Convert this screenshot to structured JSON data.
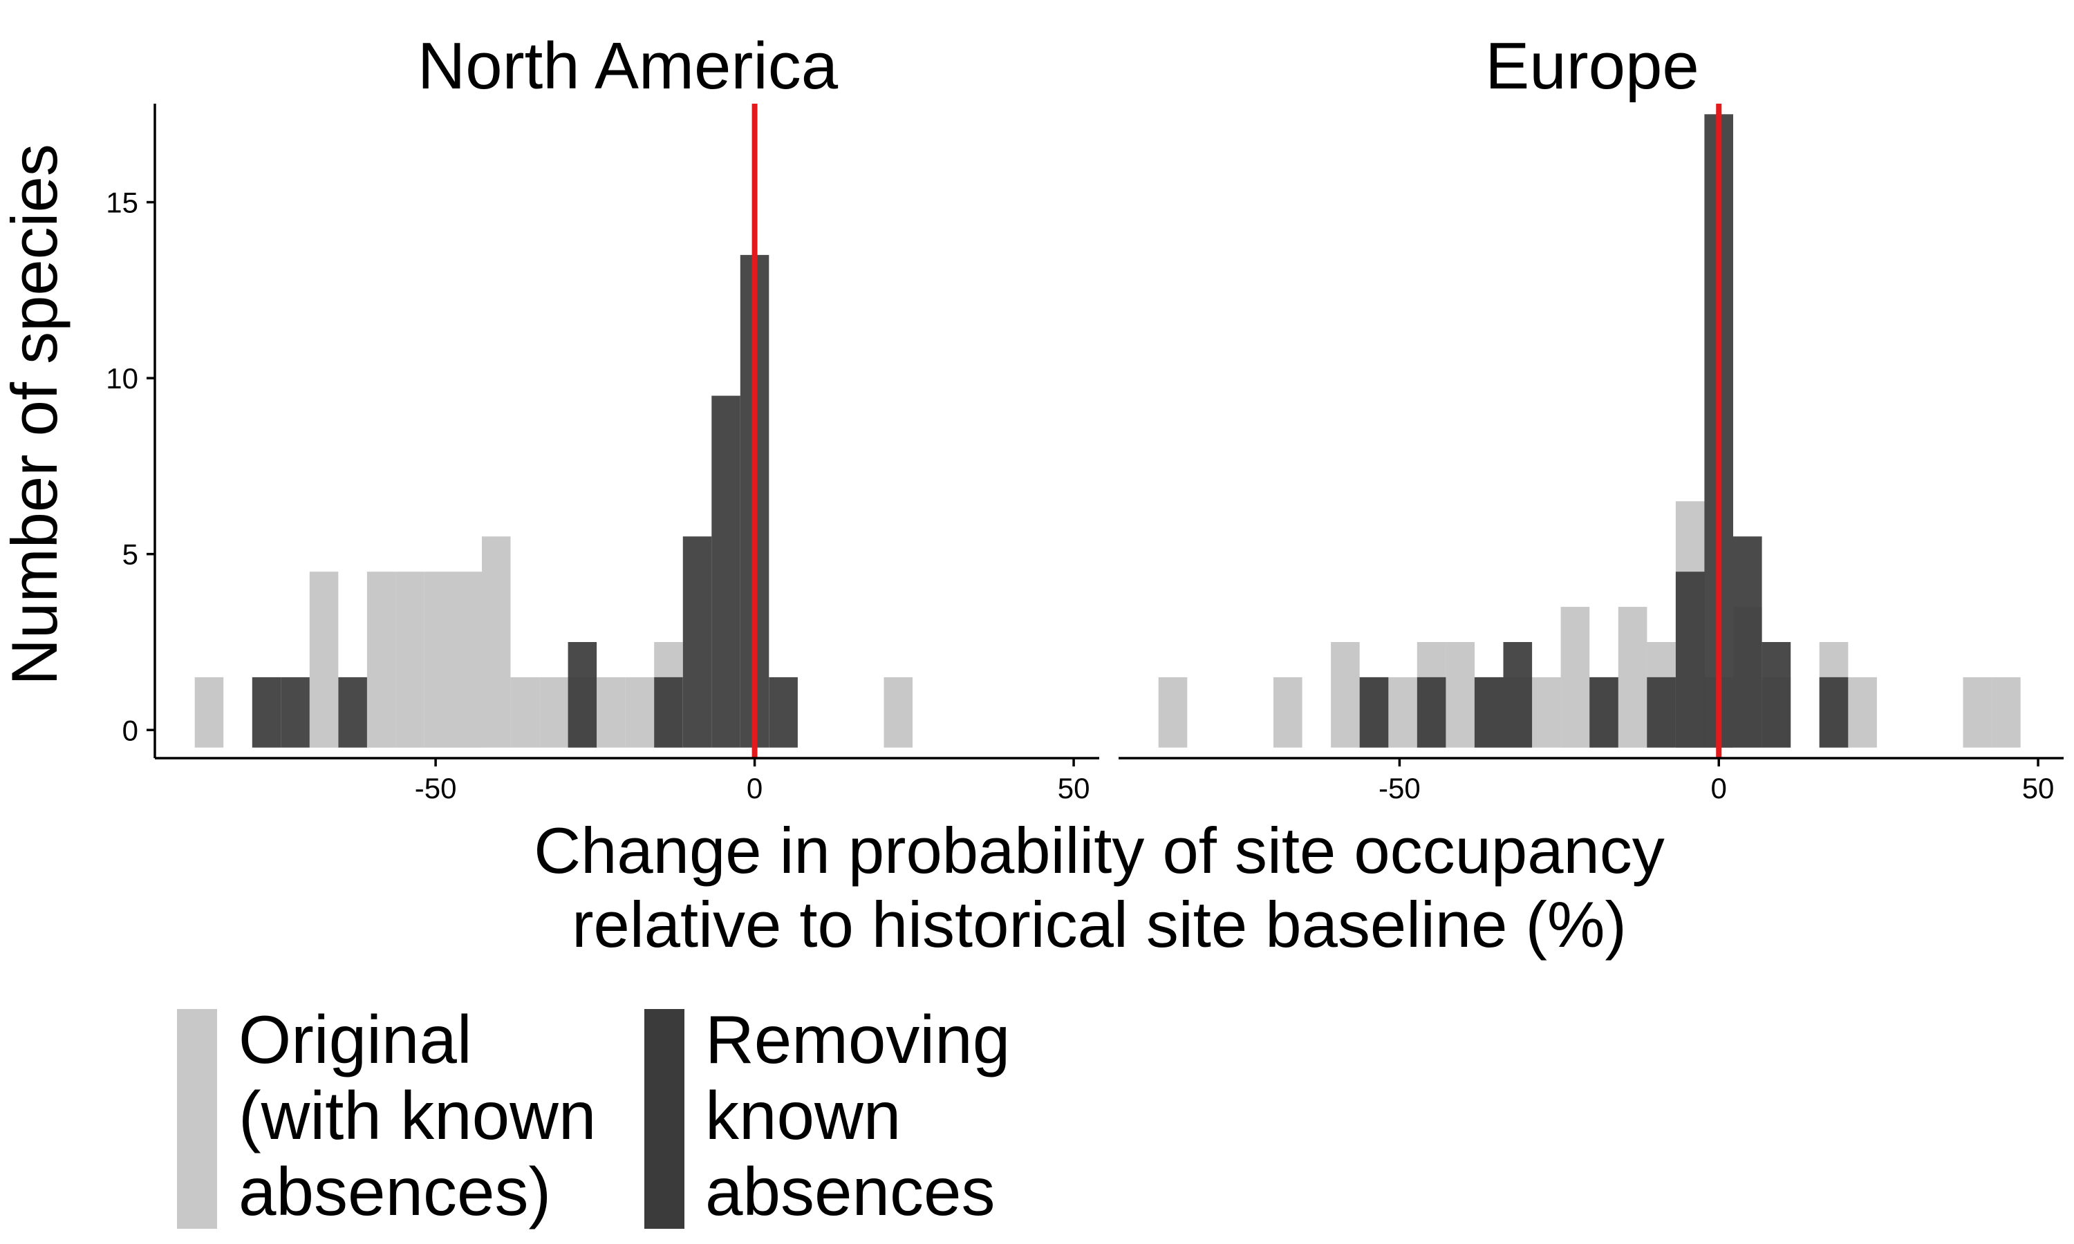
{
  "colors": {
    "original": "#c8c8c8",
    "removing": "#3b3b3b",
    "reference_line": "#e31a1c",
    "axis": "#000000",
    "background": "#ffffff"
  },
  "chart_data": {
    "type": "bar",
    "subtype": "histogram",
    "ylabel": "Number of species",
    "xlabel_lines": [
      "Change in probability of site occupancy",
      "relative to historical site baseline (%)"
    ],
    "xlim": [
      -94,
      54
    ],
    "ylim": [
      -0.8,
      17.8
    ],
    "x_ticks": [
      -50,
      0,
      50
    ],
    "x_tick_labels": [
      "-50",
      "0",
      "50"
    ],
    "y_ticks": [
      0,
      5,
      10,
      15
    ],
    "y_tick_labels": [
      "0",
      "5",
      "10",
      "15"
    ],
    "bin_width": 4.5,
    "reference_line_x": 0,
    "grid": false,
    "legend_position": "bottom",
    "legend": [
      {
        "key": "original",
        "lines": [
          "Original",
          "(with known",
          "absences)"
        ]
      },
      {
        "key": "removing",
        "lines": [
          "Removing",
          "known",
          "absences"
        ]
      }
    ],
    "panels": [
      {
        "title": "North America",
        "series": [
          {
            "name": "Original (with known absences)",
            "key": "original",
            "bins": [
              [
                -85.5,
                1
              ],
              [
                -67.5,
                4
              ],
              [
                -58.5,
                4
              ],
              [
                -54,
                4
              ],
              [
                -49.5,
                4
              ],
              [
                -45,
                4
              ],
              [
                -40.5,
                5
              ],
              [
                -36,
                1
              ],
              [
                -31.5,
                1
              ],
              [
                -27,
                1
              ],
              [
                -22.5,
                1
              ],
              [
                -18,
                1
              ],
              [
                -13.5,
                2
              ],
              [
                22.5,
                1
              ]
            ]
          },
          {
            "name": "Removing known absences",
            "key": "removing",
            "bins": [
              [
                -76.5,
                1
              ],
              [
                -72,
                1
              ],
              [
                -63,
                1
              ],
              [
                -27,
                2
              ],
              [
                -13.5,
                1
              ],
              [
                -9,
                5
              ],
              [
                -4.5,
                9
              ],
              [
                0,
                13
              ],
              [
                4.5,
                1
              ]
            ]
          }
        ]
      },
      {
        "title": "Europe",
        "series": [
          {
            "name": "Original (with known absences)",
            "key": "original",
            "bins": [
              [
                -85.5,
                1
              ],
              [
                -67.5,
                1
              ],
              [
                -58.5,
                2
              ],
              [
                -54,
                1
              ],
              [
                -49.5,
                1
              ],
              [
                -45,
                2
              ],
              [
                -40.5,
                2
              ],
              [
                -36,
                1
              ],
              [
                -31.5,
                1
              ],
              [
                -27,
                1
              ],
              [
                -22.5,
                3
              ],
              [
                -18,
                1
              ],
              [
                -13.5,
                3
              ],
              [
                -9,
                2
              ],
              [
                -4.5,
                6
              ],
              [
                0,
                1
              ],
              [
                4.5,
                3
              ],
              [
                9,
                1
              ],
              [
                18,
                2
              ],
              [
                22.5,
                1
              ],
              [
                40.5,
                1
              ],
              [
                45,
                1
              ]
            ]
          },
          {
            "name": "Removing known absences",
            "key": "removing",
            "bins": [
              [
                -54,
                1
              ],
              [
                -45,
                1
              ],
              [
                -36,
                1
              ],
              [
                -31.5,
                2
              ],
              [
                -18,
                1
              ],
              [
                -9,
                1
              ],
              [
                -4.5,
                4
              ],
              [
                0,
                17
              ],
              [
                4.5,
                5
              ],
              [
                9,
                2
              ],
              [
                18,
                1
              ]
            ]
          }
        ]
      }
    ]
  }
}
